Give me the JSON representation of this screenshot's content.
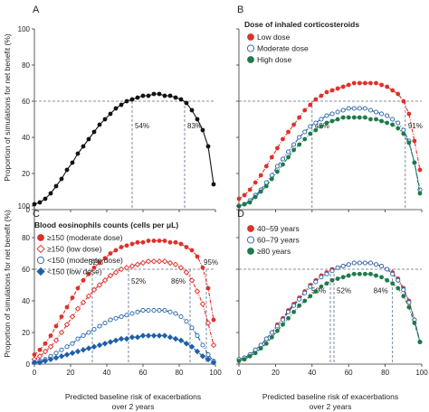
{
  "colors": {
    "black": "#111111",
    "red": "#e0302a",
    "blue": "#1f5fa8",
    "green": "#1e7a4a",
    "refline": "#5a6f86"
  },
  "figure": {
    "y_axis_label": "Proportion of simulations for net benefit (%)",
    "x_axis_label_line1": "Predicted baseline risk of exacerbations",
    "x_axis_label_line2": "over 2 years"
  },
  "chart_data": [
    {
      "panel": "A",
      "type": "line",
      "xlim": [
        0,
        100
      ],
      "ylim": [
        0,
        100
      ],
      "x_ticks": [
        0,
        20,
        40,
        60,
        80,
        100
      ],
      "y_ticks": [
        0,
        20,
        40,
        60,
        80,
        100
      ],
      "reference_y": 60,
      "show_x_tick_labels": false,
      "show_y_tick_labels": true,
      "legend_title": "",
      "series": [
        {
          "color_key": "black",
          "style": "solid",
          "marker": "dot-filled",
          "x": [
            0,
            3,
            6,
            9,
            12,
            15,
            18,
            21,
            24,
            27,
            30,
            33,
            36,
            39,
            42,
            45,
            48,
            51,
            54,
            57,
            60,
            63,
            66,
            69,
            72,
            75,
            78,
            81,
            84,
            87,
            90,
            93,
            96,
            99
          ],
          "y": [
            3,
            4,
            6,
            9,
            13,
            17,
            22,
            26,
            31,
            35,
            39,
            43,
            47,
            50,
            53,
            56,
            58,
            60,
            61,
            62,
            63,
            63,
            64,
            64,
            63,
            63,
            62,
            61,
            59,
            55,
            50,
            44,
            35,
            14
          ]
        }
      ],
      "vlines": [
        {
          "x": 54,
          "label": "54%",
          "label_y": 45
        },
        {
          "x": 83,
          "label": "83%",
          "label_y": 45
        }
      ]
    },
    {
      "panel": "B",
      "type": "line",
      "xlim": [
        0,
        100
      ],
      "ylim": [
        0,
        100
      ],
      "x_ticks": [
        0,
        20,
        40,
        60,
        80,
        100
      ],
      "y_ticks": [
        0,
        20,
        40,
        60,
        80,
        100
      ],
      "reference_y": 60,
      "show_x_tick_labels": false,
      "show_y_tick_labels": false,
      "legend_title": "Dose of inhaled corticosteroids",
      "series": [
        {
          "name": "Low dose",
          "color_key": "red",
          "style": "dashdot",
          "marker": "dot-filled",
          "x": [
            0,
            3,
            6,
            9,
            12,
            15,
            18,
            21,
            24,
            27,
            30,
            33,
            36,
            39,
            42,
            45,
            48,
            51,
            54,
            57,
            60,
            63,
            66,
            69,
            72,
            75,
            78,
            81,
            84,
            87,
            90,
            93,
            96,
            99
          ],
          "y": [
            6,
            8,
            11,
            15,
            19,
            24,
            29,
            34,
            39,
            43,
            47,
            51,
            55,
            58,
            61,
            63,
            65,
            66,
            67,
            68,
            69,
            70,
            70,
            70,
            70,
            70,
            69,
            68,
            66,
            64,
            60,
            53,
            38,
            22
          ]
        },
        {
          "name": "Moderate dose",
          "color_key": "blue",
          "style": "dashdot",
          "marker": "dot-open",
          "x": [
            0,
            3,
            6,
            9,
            12,
            15,
            18,
            21,
            24,
            27,
            30,
            33,
            36,
            39,
            42,
            45,
            48,
            51,
            54,
            57,
            60,
            63,
            66,
            69,
            72,
            75,
            78,
            81,
            84,
            87,
            90,
            93,
            96,
            99
          ],
          "y": [
            2,
            3,
            5,
            8,
            11,
            15,
            19,
            24,
            28,
            32,
            36,
            40,
            43,
            46,
            48,
            50,
            52,
            53,
            54,
            55,
            56,
            56,
            56,
            56,
            55,
            54,
            53,
            52,
            50,
            48,
            44,
            38,
            26,
            11
          ]
        },
        {
          "name": "High dose",
          "color_key": "green",
          "style": "dashdot",
          "marker": "dot-filled",
          "x": [
            0,
            3,
            6,
            9,
            12,
            15,
            18,
            21,
            24,
            27,
            30,
            33,
            36,
            39,
            42,
            45,
            48,
            51,
            54,
            57,
            60,
            63,
            66,
            69,
            72,
            75,
            78,
            81,
            84,
            87,
            90,
            93,
            96,
            99
          ],
          "y": [
            2,
            3,
            4,
            7,
            10,
            13,
            17,
            21,
            25,
            29,
            33,
            36,
            39,
            42,
            44,
            46,
            48,
            49,
            50,
            51,
            51,
            51,
            51,
            51,
            50,
            50,
            49,
            48,
            47,
            45,
            42,
            37,
            26,
            9
          ]
        }
      ],
      "vlines": [
        {
          "x": 40,
          "label": "40%",
          "label_y": 45
        },
        {
          "x": 91,
          "label": "91%",
          "label_y": 45
        }
      ]
    },
    {
      "panel": "C",
      "type": "line",
      "xlim": [
        0,
        100
      ],
      "ylim": [
        0,
        100
      ],
      "x_ticks": [
        0,
        20,
        40,
        60,
        80,
        100
      ],
      "y_ticks": [
        0,
        20,
        40,
        60,
        80,
        100
      ],
      "reference_y": 60,
      "show_x_tick_labels": true,
      "show_y_tick_labels": true,
      "legend_title": "Blood eosinophils counts (cells per μL)",
      "series": [
        {
          "name": "≥150 (moderate dose)",
          "color_key": "red",
          "style": "dashdot",
          "marker": "dot-filled",
          "x": [
            0,
            3,
            6,
            9,
            12,
            15,
            18,
            21,
            24,
            27,
            30,
            33,
            36,
            39,
            42,
            45,
            48,
            51,
            54,
            57,
            60,
            63,
            66,
            69,
            72,
            75,
            78,
            81,
            84,
            87,
            90,
            93,
            96,
            99
          ],
          "y": [
            6,
            9,
            13,
            18,
            24,
            30,
            36,
            42,
            48,
            53,
            57,
            61,
            64,
            67,
            70,
            72,
            74,
            75,
            76,
            77,
            77,
            78,
            78,
            78,
            78,
            77,
            77,
            76,
            74,
            72,
            68,
            61,
            48,
            28
          ]
        },
        {
          "name": "≥150 (low dose)",
          "color_key": "red",
          "style": "dashdot",
          "marker": "diamond-open",
          "x": [
            0,
            3,
            6,
            9,
            12,
            15,
            18,
            21,
            24,
            27,
            30,
            33,
            36,
            39,
            42,
            45,
            48,
            51,
            54,
            57,
            60,
            63,
            66,
            69,
            72,
            75,
            78,
            81,
            84,
            87,
            90,
            93,
            96,
            99
          ],
          "y": [
            3,
            5,
            8,
            11,
            15,
            20,
            25,
            30,
            35,
            39,
            43,
            47,
            50,
            53,
            56,
            58,
            60,
            61,
            62,
            63,
            64,
            65,
            65,
            65,
            65,
            64,
            63,
            61,
            58,
            53,
            46,
            38,
            26,
            12
          ]
        },
        {
          "name": "<150 (moderate dose)",
          "color_key": "blue",
          "style": "dashdot",
          "marker": "dot-open",
          "x": [
            0,
            3,
            6,
            9,
            12,
            15,
            18,
            21,
            24,
            27,
            30,
            33,
            36,
            39,
            42,
            45,
            48,
            51,
            54,
            57,
            60,
            63,
            66,
            69,
            72,
            75,
            78,
            81,
            84,
            87,
            90,
            93,
            96,
            99
          ],
          "y": [
            1,
            2,
            3,
            5,
            7,
            9,
            11,
            13,
            16,
            18,
            20,
            22,
            24,
            26,
            28,
            29,
            30,
            31,
            32,
            33,
            34,
            34,
            34,
            34,
            34,
            33,
            32,
            30,
            27,
            23,
            18,
            12,
            6,
            2
          ]
        },
        {
          "name": "<150 (low dose)",
          "color_key": "blue",
          "style": "dashdot",
          "marker": "diamond-filled",
          "x": [
            0,
            3,
            6,
            9,
            12,
            15,
            18,
            21,
            24,
            27,
            30,
            33,
            36,
            39,
            42,
            45,
            48,
            51,
            54,
            57,
            60,
            63,
            66,
            69,
            72,
            75,
            78,
            81,
            84,
            87,
            90,
            93,
            96,
            99
          ],
          "y": [
            1,
            1,
            2,
            3,
            4,
            5,
            6,
            7,
            8,
            9,
            10,
            11,
            12,
            13,
            14,
            15,
            16,
            16,
            17,
            17,
            18,
            18,
            18,
            18,
            18,
            17,
            16,
            15,
            13,
            11,
            8,
            5,
            3,
            1
          ]
        }
      ],
      "vlines": [
        {
          "x": 32,
          "label": "32%",
          "label_y": 63,
          "label_dx": -4
        },
        {
          "x": 52,
          "label": "52%",
          "label_y": 51
        },
        {
          "x": 86,
          "label": "86%",
          "label_y": 51,
          "label_dx": -21
        },
        {
          "x": 95,
          "label": "95%",
          "label_y": 63,
          "label_dx": -3
        }
      ]
    },
    {
      "panel": "D",
      "type": "line",
      "xlim": [
        0,
        100
      ],
      "ylim": [
        0,
        100
      ],
      "x_ticks": [
        0,
        20,
        40,
        60,
        80,
        100
      ],
      "y_ticks": [
        0,
        20,
        40,
        60,
        80,
        100
      ],
      "reference_y": 60,
      "show_x_tick_labels": true,
      "show_y_tick_labels": false,
      "legend_title": "",
      "series": [
        {
          "name": "40–59 years",
          "color_key": "red",
          "style": "dashdot",
          "marker": "dot-filled",
          "x": [
            0,
            3,
            6,
            9,
            12,
            15,
            18,
            21,
            24,
            27,
            30,
            33,
            36,
            39,
            42,
            45,
            48,
            51,
            54,
            57,
            60,
            63,
            66,
            69,
            72,
            75,
            78,
            81,
            84,
            87,
            90,
            93,
            96,
            99
          ],
          "y": [
            3,
            4,
            6,
            9,
            12,
            16,
            20,
            25,
            29,
            34,
            38,
            42,
            46,
            50,
            53,
            56,
            58,
            60,
            61,
            62,
            63,
            64,
            64,
            64,
            64,
            63,
            62,
            60,
            58,
            54,
            48,
            40,
            28,
            14
          ]
        },
        {
          "name": "60–79 years",
          "color_key": "blue",
          "style": "dashdot",
          "marker": "dot-open",
          "x": [
            0,
            3,
            6,
            9,
            12,
            15,
            18,
            21,
            24,
            27,
            30,
            33,
            36,
            39,
            42,
            45,
            48,
            51,
            54,
            57,
            60,
            63,
            66,
            69,
            72,
            75,
            78,
            81,
            84,
            87,
            90,
            93,
            96,
            99
          ],
          "y": [
            3,
            4,
            6,
            9,
            12,
            16,
            20,
            24,
            28,
            33,
            37,
            41,
            45,
            49,
            52,
            55,
            57,
            59,
            61,
            62,
            63,
            64,
            64,
            64,
            64,
            63,
            62,
            60,
            57,
            53,
            47,
            39,
            28,
            14
          ]
        },
        {
          "name": "≥80 years",
          "color_key": "green",
          "style": "dashdot",
          "marker": "dot-filled",
          "x": [
            0,
            3,
            6,
            9,
            12,
            15,
            18,
            21,
            24,
            27,
            30,
            33,
            36,
            39,
            42,
            45,
            48,
            51,
            54,
            57,
            60,
            63,
            66,
            69,
            72,
            75,
            78,
            81,
            84,
            87,
            90,
            93,
            96,
            99
          ],
          "y": [
            2,
            3,
            5,
            7,
            10,
            13,
            17,
            21,
            25,
            29,
            33,
            37,
            40,
            43,
            46,
            49,
            51,
            53,
            54,
            55,
            56,
            57,
            57,
            57,
            57,
            56,
            55,
            53,
            51,
            48,
            43,
            36,
            26,
            14
          ]
        }
      ],
      "vlines": [
        {
          "x": 50,
          "label": "50%",
          "label_y": 45,
          "label_dx": -21
        },
        {
          "x": 52,
          "label": "52%",
          "label_y": 45
        },
        {
          "x": 84,
          "label": "84%",
          "label_y": 45,
          "label_dx": -21
        }
      ]
    }
  ]
}
